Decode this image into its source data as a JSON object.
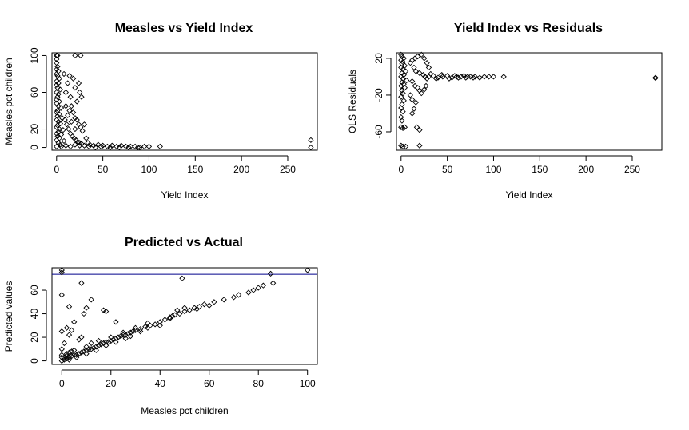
{
  "chart_data": [
    {
      "type": "scatter",
      "title": "Measles vs Yield Index",
      "xlabel": "Yield Index",
      "ylabel": "Measles pct children",
      "xlim": [
        -5,
        282
      ],
      "ylim": [
        -3,
        103
      ],
      "xticks": [
        0,
        50,
        100,
        150,
        200,
        250
      ],
      "yticks": [
        0,
        20,
        60,
        100
      ],
      "points": [
        [
          0,
          100
        ],
        [
          1,
          100
        ],
        [
          20,
          100
        ],
        [
          26,
          100
        ],
        [
          0,
          96
        ],
        [
          0,
          92
        ],
        [
          1,
          88
        ],
        [
          0,
          85
        ],
        [
          2,
          83
        ],
        [
          0,
          80
        ],
        [
          1,
          78
        ],
        [
          3,
          75
        ],
        [
          0,
          72
        ],
        [
          2,
          70
        ],
        [
          0,
          68
        ],
        [
          1,
          65
        ],
        [
          4,
          63
        ],
        [
          0,
          60
        ],
        [
          2,
          58
        ],
        [
          1,
          55
        ],
        [
          0,
          52
        ],
        [
          3,
          50
        ],
        [
          0,
          48
        ],
        [
          2,
          45
        ],
        [
          5,
          43
        ],
        [
          1,
          40
        ],
        [
          0,
          38
        ],
        [
          3,
          36
        ],
        [
          1,
          34
        ],
        [
          6,
          32
        ],
        [
          0,
          30
        ],
        [
          2,
          28
        ],
        [
          4,
          26
        ],
        [
          1,
          24
        ],
        [
          0,
          22
        ],
        [
          3,
          20
        ],
        [
          7,
          19
        ],
        [
          2,
          17
        ],
        [
          0,
          15
        ],
        [
          5,
          14
        ],
        [
          1,
          12
        ],
        [
          3,
          10
        ],
        [
          0,
          8
        ],
        [
          8,
          7
        ],
        [
          2,
          5
        ],
        [
          4,
          3
        ],
        [
          0,
          1
        ],
        [
          8,
          80
        ],
        [
          10,
          60
        ],
        [
          12,
          70
        ],
        [
          14,
          78
        ],
        [
          15,
          55
        ],
        [
          16,
          45
        ],
        [
          18,
          75
        ],
        [
          20,
          65
        ],
        [
          22,
          50
        ],
        [
          24,
          70
        ],
        [
          25,
          60
        ],
        [
          27,
          55
        ],
        [
          14,
          40
        ],
        [
          12,
          35
        ],
        [
          18,
          38
        ],
        [
          20,
          32
        ],
        [
          22,
          30
        ],
        [
          16,
          28
        ],
        [
          24,
          25
        ],
        [
          26,
          22
        ],
        [
          28,
          18
        ],
        [
          20,
          20
        ],
        [
          10,
          45
        ],
        [
          9,
          30
        ],
        [
          11,
          25
        ],
        [
          13,
          20
        ],
        [
          15,
          15
        ],
        [
          17,
          12
        ],
        [
          19,
          10
        ],
        [
          21,
          8
        ],
        [
          23,
          6
        ],
        [
          25,
          5
        ],
        [
          27,
          4
        ],
        [
          30,
          25
        ],
        [
          32,
          10
        ],
        [
          34,
          5
        ],
        [
          36,
          3
        ],
        [
          40,
          2
        ],
        [
          45,
          3
        ],
        [
          50,
          2
        ],
        [
          55,
          1
        ],
        [
          60,
          2
        ],
        [
          65,
          1
        ],
        [
          70,
          2
        ],
        [
          75,
          1
        ],
        [
          80,
          1
        ],
        [
          85,
          1
        ],
        [
          90,
          0
        ],
        [
          95,
          1
        ],
        [
          100,
          1
        ],
        [
          112,
          1
        ],
        [
          30,
          2
        ],
        [
          35,
          1
        ],
        [
          42,
          0
        ],
        [
          48,
          1
        ],
        [
          58,
          0
        ],
        [
          68,
          0
        ],
        [
          78,
          0
        ],
        [
          88,
          0
        ],
        [
          5,
          1
        ],
        [
          10,
          2
        ],
        [
          15,
          1
        ],
        [
          20,
          3
        ],
        [
          25,
          2
        ],
        [
          275,
          0
        ],
        [
          275,
          8
        ]
      ]
    },
    {
      "type": "scatter",
      "title": "Yield Index vs Residuals",
      "xlabel": "Yield Index",
      "ylabel": "OLS Residuals",
      "xlim": [
        -5,
        282
      ],
      "ylim": [
        -80,
        26
      ],
      "xticks": [
        0,
        50,
        100,
        150,
        200,
        250
      ],
      "yticks": [
        20,
        -20,
        -60
      ],
      "points": [
        [
          0,
          24
        ],
        [
          1,
          22
        ],
        [
          3,
          20
        ],
        [
          0,
          18
        ],
        [
          2,
          16
        ],
        [
          1,
          14
        ],
        [
          4,
          12
        ],
        [
          0,
          10
        ],
        [
          2,
          8
        ],
        [
          5,
          6
        ],
        [
          1,
          4
        ],
        [
          3,
          2
        ],
        [
          0,
          0
        ],
        [
          2,
          -2
        ],
        [
          6,
          -4
        ],
        [
          1,
          -6
        ],
        [
          3,
          -8
        ],
        [
          0,
          -10
        ],
        [
          4,
          -12
        ],
        [
          1,
          -15
        ],
        [
          2,
          -18
        ],
        [
          0,
          -22
        ],
        [
          3,
          -26
        ],
        [
          1,
          -30
        ],
        [
          0,
          -34
        ],
        [
          2,
          -38
        ],
        [
          0,
          -44
        ],
        [
          1,
          -48
        ],
        [
          0,
          -55
        ],
        [
          2,
          -56
        ],
        [
          4,
          -55
        ],
        [
          0,
          -75
        ],
        [
          2,
          -76
        ],
        [
          5,
          -76
        ],
        [
          10,
          15
        ],
        [
          12,
          18
        ],
        [
          15,
          20
        ],
        [
          18,
          22
        ],
        [
          22,
          24
        ],
        [
          25,
          20
        ],
        [
          28,
          15
        ],
        [
          30,
          10
        ],
        [
          14,
          10
        ],
        [
          16,
          6
        ],
        [
          20,
          4
        ],
        [
          24,
          2
        ],
        [
          26,
          0
        ],
        [
          28,
          -2
        ],
        [
          12,
          -5
        ],
        [
          15,
          -10
        ],
        [
          18,
          -12
        ],
        [
          20,
          -15
        ],
        [
          22,
          -18
        ],
        [
          25,
          -14
        ],
        [
          27,
          -10
        ],
        [
          10,
          -20
        ],
        [
          12,
          -25
        ],
        [
          16,
          -28
        ],
        [
          14,
          -35
        ],
        [
          12,
          -40
        ],
        [
          17,
          -55
        ],
        [
          20,
          -58
        ],
        [
          20,
          -75
        ],
        [
          30,
          0
        ],
        [
          35,
          1
        ],
        [
          40,
          -1
        ],
        [
          45,
          0
        ],
        [
          50,
          1
        ],
        [
          55,
          -1
        ],
        [
          60,
          0
        ],
        [
          65,
          0
        ],
        [
          70,
          -1
        ],
        [
          75,
          0
        ],
        [
          80,
          0
        ],
        [
          85,
          -1
        ],
        [
          90,
          0
        ],
        [
          95,
          0
        ],
        [
          100,
          0
        ],
        [
          111,
          0
        ],
        [
          32,
          3
        ],
        [
          38,
          -2
        ],
        [
          44,
          2
        ],
        [
          52,
          -2
        ],
        [
          58,
          1
        ],
        [
          62,
          -1
        ],
        [
          68,
          1
        ],
        [
          72,
          0
        ],
        [
          78,
          -1
        ],
        [
          275,
          -1
        ],
        [
          275,
          -1.5
        ]
      ]
    },
    {
      "type": "scatter",
      "title": "Predicted vs Actual",
      "xlabel": "Measles pct children",
      "ylabel": "Predicted values",
      "xlim": [
        -4,
        104
      ],
      "ylim": [
        -3,
        79
      ],
      "xticks": [
        0,
        20,
        40,
        60,
        80,
        100
      ],
      "yticks": [
        0,
        20,
        40,
        60
      ],
      "hline": 73.5,
      "hline_color": "#00008B",
      "points": [
        [
          0,
          77
        ],
        [
          0,
          75
        ],
        [
          100,
          77
        ],
        [
          85,
          74
        ],
        [
          49,
          70
        ],
        [
          86,
          66
        ],
        [
          8,
          66
        ],
        [
          0,
          56
        ],
        [
          3,
          46
        ],
        [
          12,
          52
        ],
        [
          10,
          45
        ],
        [
          9,
          40
        ],
        [
          17,
          43
        ],
        [
          18,
          42
        ],
        [
          5,
          33
        ],
        [
          2,
          28
        ],
        [
          22,
          33
        ],
        [
          0,
          25
        ],
        [
          1,
          15
        ],
        [
          0,
          10
        ],
        [
          2,
          6
        ],
        [
          7,
          18
        ],
        [
          8,
          20
        ],
        [
          4,
          26
        ],
        [
          3,
          22
        ],
        [
          0,
          0
        ],
        [
          1,
          1
        ],
        [
          2,
          2
        ],
        [
          3,
          3
        ],
        [
          4,
          4
        ],
        [
          5,
          5
        ],
        [
          6,
          5
        ],
        [
          7,
          6
        ],
        [
          8,
          7
        ],
        [
          9,
          8
        ],
        [
          10,
          9
        ],
        [
          11,
          10
        ],
        [
          12,
          10
        ],
        [
          13,
          11
        ],
        [
          14,
          12
        ],
        [
          15,
          13
        ],
        [
          16,
          14
        ],
        [
          17,
          15
        ],
        [
          18,
          16
        ],
        [
          19,
          16
        ],
        [
          20,
          17
        ],
        [
          21,
          18
        ],
        [
          22,
          19
        ],
        [
          23,
          20
        ],
        [
          24,
          21
        ],
        [
          25,
          22
        ],
        [
          26,
          22
        ],
        [
          27,
          23
        ],
        [
          28,
          24
        ],
        [
          29,
          25
        ],
        [
          30,
          26
        ],
        [
          32,
          27
        ],
        [
          34,
          29
        ],
        [
          36,
          30
        ],
        [
          38,
          31
        ],
        [
          40,
          33
        ],
        [
          42,
          35
        ],
        [
          44,
          37
        ],
        [
          46,
          39
        ],
        [
          48,
          40
        ],
        [
          50,
          42
        ],
        [
          52,
          43
        ],
        [
          54,
          45
        ],
        [
          56,
          46
        ],
        [
          58,
          48
        ],
        [
          62,
          50
        ],
        [
          66,
          52
        ],
        [
          70,
          54
        ],
        [
          72,
          56
        ],
        [
          76,
          58
        ],
        [
          78,
          60
        ],
        [
          80,
          62
        ],
        [
          82,
          64
        ],
        [
          0,
          3
        ],
        [
          0,
          5
        ],
        [
          1,
          3
        ],
        [
          2,
          4
        ],
        [
          3,
          7
        ],
        [
          4,
          8
        ],
        [
          5,
          9
        ],
        [
          10,
          12
        ],
        [
          12,
          15
        ],
        [
          15,
          17
        ],
        [
          20,
          20
        ],
        [
          25,
          24
        ],
        [
          30,
          28
        ],
        [
          35,
          32
        ],
        [
          45,
          38
        ],
        [
          55,
          44
        ],
        [
          60,
          47
        ],
        [
          50,
          45
        ],
        [
          47,
          43
        ],
        [
          44,
          36
        ],
        [
          40,
          30
        ],
        [
          35,
          28
        ],
        [
          32,
          25
        ],
        [
          28,
          21
        ],
        [
          26,
          19
        ],
        [
          22,
          16
        ],
        [
          18,
          13
        ],
        [
          14,
          9
        ],
        [
          10,
          6
        ],
        [
          6,
          3
        ],
        [
          3,
          1
        ]
      ]
    }
  ]
}
